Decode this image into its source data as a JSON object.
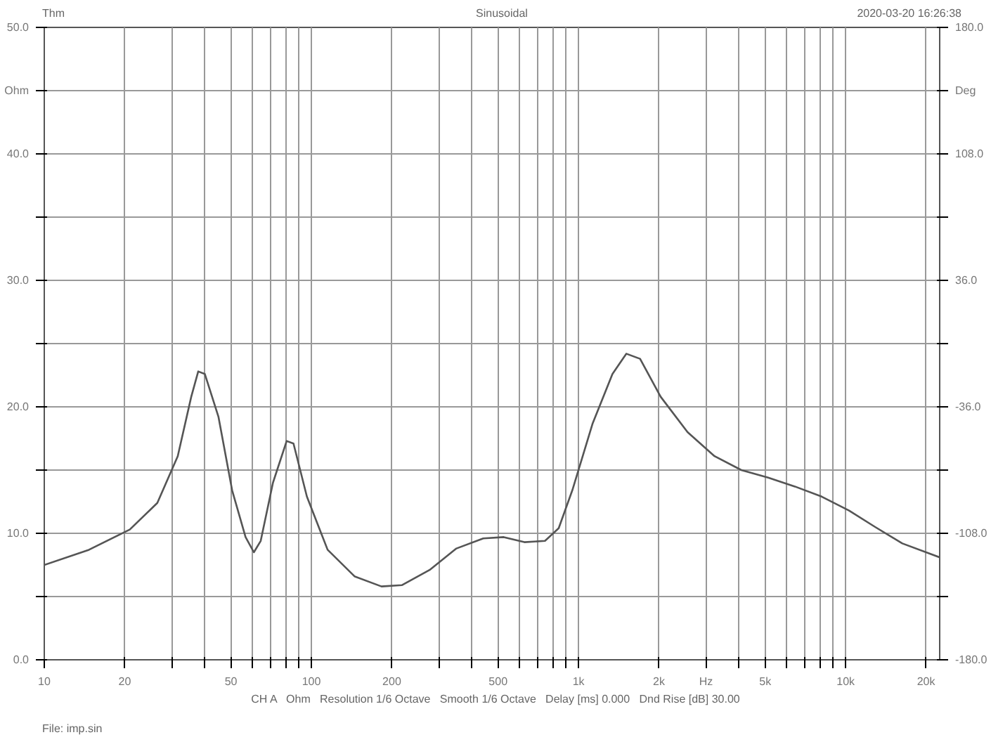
{
  "chart_data": {
    "type": "line",
    "title": "Sinusoidal",
    "annotations": [
      "Thm",
      "2020-03-20 16:26:38",
      "CH A   Ohm   Resolution 1/6 Octave   Smooth 1/6 Octave   Delay [ms] 0.000   Dnd Rise [dB] 30.00",
      "File: imp.sin"
    ],
    "log": "x",
    "grid": true,
    "marker": "none",
    "line_style": "solid",
    "xlim": [
      10,
      22500
    ],
    "xticks": [
      {
        "value": 10,
        "label": "10"
      },
      {
        "value": 20,
        "label": "20"
      },
      {
        "value": 30,
        "label": null
      },
      {
        "value": 40,
        "label": null
      },
      {
        "value": 50,
        "label": "50"
      },
      {
        "value": 60,
        "label": null
      },
      {
        "value": 70,
        "label": null
      },
      {
        "value": 80,
        "label": null
      },
      {
        "value": 90,
        "label": null
      },
      {
        "value": 100,
        "label": "100"
      },
      {
        "value": 200,
        "label": "200"
      },
      {
        "value": 300,
        "label": null
      },
      {
        "value": 400,
        "label": null
      },
      {
        "value": 500,
        "label": "500"
      },
      {
        "value": 600,
        "label": null
      },
      {
        "value": 700,
        "label": null
      },
      {
        "value": 800,
        "label": null
      },
      {
        "value": 900,
        "label": null
      },
      {
        "value": 1000,
        "label": "1k"
      },
      {
        "value": 2000,
        "label": "2k"
      },
      {
        "value": 3000,
        "label": "Hz"
      },
      {
        "value": 4000,
        "label": null
      },
      {
        "value": 5000,
        "label": "5k"
      },
      {
        "value": 6000,
        "label": null
      },
      {
        "value": 7000,
        "label": null
      },
      {
        "value": 8000,
        "label": null
      },
      {
        "value": 9000,
        "label": null
      },
      {
        "value": 10000,
        "label": "10k"
      },
      {
        "value": 20000,
        "label": "20k"
      }
    ],
    "ylim": [
      0,
      50
    ],
    "yticks": [
      {
        "value": 0,
        "label": "0.0"
      },
      {
        "value": 5,
        "label": null
      },
      {
        "value": 10,
        "label": "10.0"
      },
      {
        "value": 15,
        "label": null
      },
      {
        "value": 20,
        "label": "20.0"
      },
      {
        "value": 25,
        "label": null
      },
      {
        "value": 30,
        "label": "30.0"
      },
      {
        "value": 35,
        "label": null
      },
      {
        "value": 40,
        "label": "40.0"
      },
      {
        "value": 45,
        "label": "Ohm"
      },
      {
        "value": 50,
        "label": "50.0"
      }
    ],
    "y2lim": [
      -180,
      180
    ],
    "y2ticks": [
      {
        "value": -180,
        "label": "-180.0"
      },
      {
        "value": -144,
        "label": null
      },
      {
        "value": -108,
        "label": "-108.0"
      },
      {
        "value": -72,
        "label": null
      },
      {
        "value": -36,
        "label": "-36.0"
      },
      {
        "value": 0,
        "label": null
      },
      {
        "value": 36,
        "label": "36.0"
      },
      {
        "value": 72,
        "label": null
      },
      {
        "value": 108,
        "label": "108.0"
      },
      {
        "value": 144,
        "label": "Deg"
      },
      {
        "value": 180,
        "label": "180.0"
      }
    ],
    "series": [
      {
        "color": "#555555",
        "x": [
          10,
          14.7,
          20.9,
          26.5,
          31.6,
          35.5,
          37.7,
          39.9,
          44.9,
          50.5,
          56.7,
          60.9,
          64.6,
          71.8,
          80.8,
          85.7,
          96.2,
          115,
          145,
          183,
          218,
          277,
          349,
          440,
          525,
          627,
          749,
          843,
          948,
          1130,
          1340,
          1510,
          1700,
          2030,
          2560,
          3230,
          4070,
          5130,
          6460,
          8140,
          10300,
          12900,
          16300,
          22500
        ],
        "values": [
          7.5,
          8.7,
          10.3,
          12.4,
          16.1,
          20.8,
          22.8,
          22.6,
          19.2,
          13.4,
          9.7,
          8.5,
          9.4,
          14.0,
          17.3,
          17.1,
          12.9,
          8.7,
          6.6,
          5.8,
          5.9,
          7.1,
          8.8,
          9.6,
          9.7,
          9.3,
          9.4,
          10.4,
          13.4,
          18.7,
          22.6,
          24.2,
          23.8,
          20.8,
          18.0,
          16.1,
          15.0,
          14.4,
          13.7,
          12.9,
          11.8,
          10.5,
          9.2,
          8.1
        ]
      }
    ]
  }
}
